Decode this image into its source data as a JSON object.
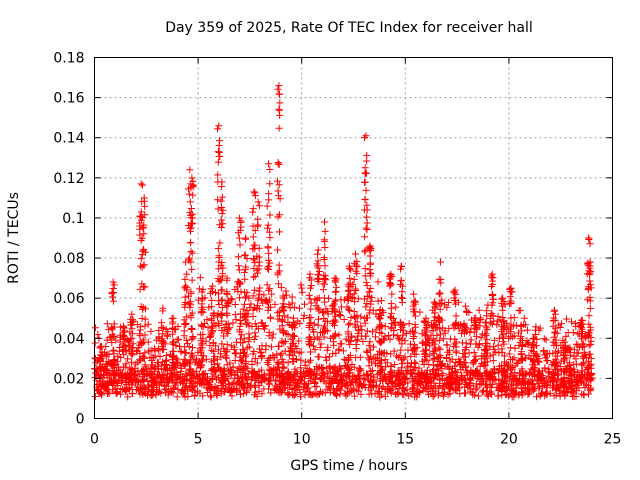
{
  "chart_data": {
    "type": "scatter",
    "title": "Day 359 of 2025, Rate Of TEC Index for receiver hall",
    "xlabel": "GPS time / hours",
    "ylabel": "ROTI / TECUs",
    "xlim": [
      0,
      25
    ],
    "ylim": [
      0,
      0.18
    ],
    "xticks": [
      0,
      5,
      10,
      15,
      20,
      25
    ],
    "xtick_labels": [
      "0",
      "5",
      "10",
      "15",
      "20",
      "25"
    ],
    "yticks": [
      0,
      0.02,
      0.04,
      0.06,
      0.08,
      0.1,
      0.12,
      0.14,
      0.16,
      0.18
    ],
    "ytick_labels": [
      "0",
      "0.02",
      "0.04",
      "0.06",
      "0.08",
      "0.1",
      "0.12",
      "0.14",
      "0.16",
      "0.18"
    ],
    "grid": true,
    "marker": "+",
    "color": "#ff0000",
    "data_range": [
      0,
      24
    ],
    "baseline_roti": 0.016,
    "spikes": [
      {
        "x": 0.3,
        "y": 0.036
      },
      {
        "x": 0.9,
        "y": 0.068
      },
      {
        "x": 1.4,
        "y": 0.046
      },
      {
        "x": 1.8,
        "y": 0.052
      },
      {
        "x": 2.25,
        "y": 0.117
      },
      {
        "x": 2.4,
        "y": 0.11
      },
      {
        "x": 3.3,
        "y": 0.055
      },
      {
        "x": 3.8,
        "y": 0.05
      },
      {
        "x": 4.4,
        "y": 0.078
      },
      {
        "x": 4.6,
        "y": 0.124
      },
      {
        "x": 4.7,
        "y": 0.12
      },
      {
        "x": 5.2,
        "y": 0.06
      },
      {
        "x": 5.7,
        "y": 0.066
      },
      {
        "x": 6.0,
        "y": 0.146
      },
      {
        "x": 6.15,
        "y": 0.118
      },
      {
        "x": 6.4,
        "y": 0.07
      },
      {
        "x": 7.0,
        "y": 0.1
      },
      {
        "x": 7.3,
        "y": 0.09
      },
      {
        "x": 7.7,
        "y": 0.113
      },
      {
        "x": 7.9,
        "y": 0.108
      },
      {
        "x": 8.4,
        "y": 0.127
      },
      {
        "x": 8.9,
        "y": 0.166
      },
      {
        "x": 9.1,
        "y": 0.06
      },
      {
        "x": 9.6,
        "y": 0.05
      },
      {
        "x": 10.4,
        "y": 0.072
      },
      {
        "x": 10.8,
        "y": 0.084
      },
      {
        "x": 11.1,
        "y": 0.098
      },
      {
        "x": 11.6,
        "y": 0.07
      },
      {
        "x": 12.3,
        "y": 0.076
      },
      {
        "x": 12.6,
        "y": 0.082
      },
      {
        "x": 13.1,
        "y": 0.141
      },
      {
        "x": 13.3,
        "y": 0.086
      },
      {
        "x": 13.8,
        "y": 0.05
      },
      {
        "x": 14.3,
        "y": 0.072
      },
      {
        "x": 14.8,
        "y": 0.076
      },
      {
        "x": 15.4,
        "y": 0.062
      },
      {
        "x": 16.0,
        "y": 0.05
      },
      {
        "x": 16.4,
        "y": 0.058
      },
      {
        "x": 16.7,
        "y": 0.078
      },
      {
        "x": 17.4,
        "y": 0.064
      },
      {
        "x": 17.9,
        "y": 0.056
      },
      {
        "x": 18.4,
        "y": 0.05
      },
      {
        "x": 18.9,
        "y": 0.048
      },
      {
        "x": 19.2,
        "y": 0.072
      },
      {
        "x": 19.7,
        "y": 0.06
      },
      {
        "x": 20.1,
        "y": 0.065
      },
      {
        "x": 20.6,
        "y": 0.046
      },
      {
        "x": 21.2,
        "y": 0.04
      },
      {
        "x": 22.2,
        "y": 0.054
      },
      {
        "x": 22.7,
        "y": 0.038
      },
      {
        "x": 23.5,
        "y": 0.049
      },
      {
        "x": 23.85,
        "y": 0.09
      },
      {
        "x": 23.9,
        "y": 0.075
      }
    ]
  }
}
